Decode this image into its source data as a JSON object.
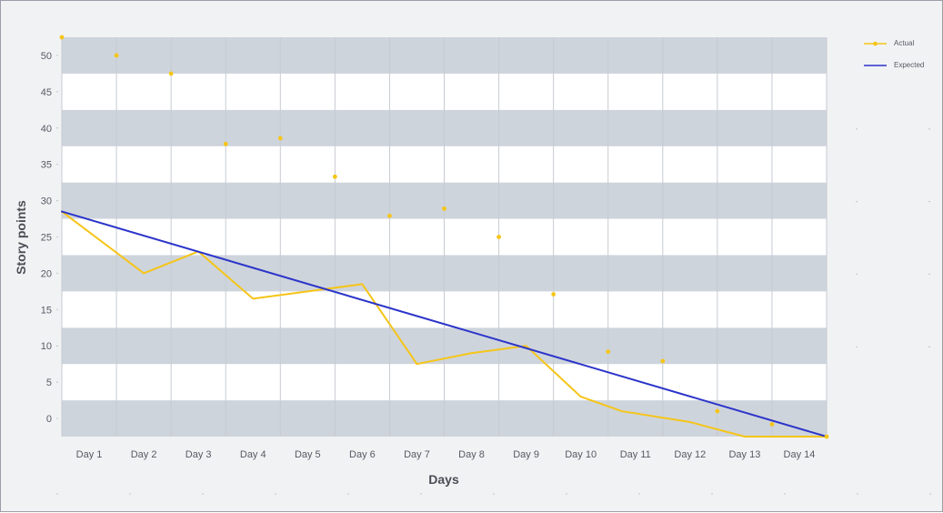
{
  "chart_data": {
    "type": "line",
    "title": "",
    "xlabel": "Days",
    "ylabel": "Story points",
    "categories": [
      "Day 1",
      "Day 2",
      "Day 3",
      "Day 4",
      "Day 5",
      "Day 6",
      "Day 7",
      "Day 8",
      "Day 9",
      "Day 10",
      "Day 11",
      "Day 12",
      "Day 13",
      "Day 14"
    ],
    "yticks": [
      0,
      5,
      10,
      15,
      20,
      25,
      30,
      35,
      40,
      45,
      50
    ],
    "ylim": [
      -2.5,
      52.5
    ],
    "x_range": [
      0.5,
      14.5
    ],
    "grid": true,
    "legend_position": "top-right",
    "series": [
      {
        "name": "Actual",
        "color": "#f5c518",
        "line_x": [
          0.5,
          2.0,
          3.0,
          4.0,
          5.0,
          6.0,
          7.0,
          8.0,
          9.0,
          10.0,
          10.75,
          12.0,
          13.0,
          14.5
        ],
        "line_y": [
          28.5,
          20.0,
          23.0,
          16.5,
          17.5,
          18.5,
          7.5,
          9.0,
          10.0,
          3.0,
          1.0,
          -0.5,
          -2.5,
          -2.5
        ],
        "point_x": [
          0.5,
          1.5,
          2.5,
          3.5,
          4.5,
          5.5,
          6.5,
          7.5,
          8.5,
          9.5,
          10.5,
          11.5,
          12.5,
          13.5,
          14.5
        ],
        "point_y": [
          52.5,
          50.0,
          47.5,
          37.8,
          38.6,
          33.3,
          27.9,
          28.9,
          25.0,
          17.1,
          9.2,
          7.9,
          1.0,
          -0.8,
          -2.5
        ]
      },
      {
        "name": "Expected",
        "color": "#2c35c9",
        "line_x": [
          0.5,
          14.5
        ],
        "line_y": [
          28.5,
          -2.5
        ]
      }
    ]
  }
}
